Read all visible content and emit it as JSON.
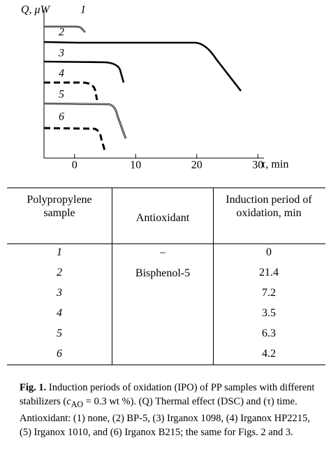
{
  "chart_data": {
    "type": "line",
    "ylabel": "Q, μW",
    "xlabel": "τ, min",
    "xlim": [
      -5,
      31
    ],
    "xticks": [
      0,
      10,
      20,
      30
    ],
    "series": [
      {
        "name": "1",
        "dashed": false
      },
      {
        "name": "2",
        "dashed": false
      },
      {
        "name": "3",
        "dashed": false
      },
      {
        "name": "4",
        "dashed": true
      },
      {
        "name": "5",
        "dashed": false
      },
      {
        "name": "6",
        "dashed": true
      }
    ]
  },
  "table": {
    "headers": [
      "Polypropylene sample",
      "Antioxidant",
      "Induction period of oxidation, min"
    ],
    "rows": [
      [
        "1",
        "–",
        "0"
      ],
      [
        "2",
        "Bisphenol-5",
        "21.4"
      ],
      [
        "3",
        null,
        "7.2"
      ],
      [
        "4",
        null,
        "3.5"
      ],
      [
        "5",
        null,
        "6.3"
      ],
      [
        "6",
        null,
        "4.2"
      ]
    ]
  },
  "caption": {
    "label": "Fig. 1.",
    "text1": "Induction periods of oxidation (IPO) of PP samples with different stabilizers (",
    "symbol": "c",
    "subscript": "AO",
    "text2": " = 0.3 wt %). (Q) Thermal effect (DSC) and (τ) time. Antioxidant: (1) none, (2) BP-5, (3) Irganox 1098, (4) Irganox HP2215, (5) Irganox 1010, and (6) Irganox B215; the same for Figs. 2 and 3."
  }
}
